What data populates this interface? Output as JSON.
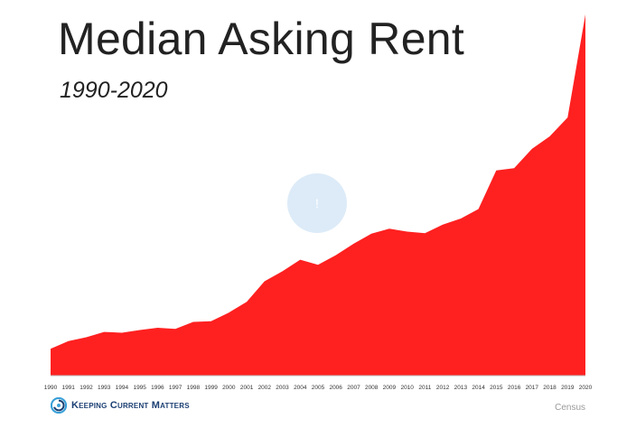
{
  "chart_data": {
    "type": "area",
    "title": "Median Asking Rent",
    "subtitle": "1990-2020",
    "x": [
      "1990",
      "1991",
      "1992",
      "1993",
      "1994",
      "1995",
      "1996",
      "1997",
      "1998",
      "1999",
      "2000",
      "2001",
      "2002",
      "2003",
      "2004",
      "2005",
      "2006",
      "2007",
      "2008",
      "2009",
      "2010",
      "2011",
      "2012",
      "2013",
      "2014",
      "2015",
      "2016",
      "2017",
      "2018",
      "2019",
      "2020"
    ],
    "series": [
      {
        "values": [
          371,
          408,
          427,
          453,
          449,
          462,
          473,
          468,
          502,
          505,
          547,
          600,
          700,
          748,
          805,
          780,
          827,
          883,
          932,
          956,
          942,
          934,
          976,
          1005,
          1052,
          1240,
          1251,
          1345,
          1406,
          1498,
          2000
        ]
      }
    ],
    "ylim": [
      240,
      2000
    ],
    "xlabel": "",
    "ylabel": "",
    "grid": false,
    "colors": {
      "fill": "#ff2020",
      "axis": "#bbbbbb",
      "title": "#222222"
    }
  },
  "branding": {
    "logo_icon": "kcm-swirl-icon",
    "text": "Keeping Current Matters"
  },
  "source": "Census",
  "overlay": {
    "icon": "play-icon",
    "glyph": "!"
  }
}
